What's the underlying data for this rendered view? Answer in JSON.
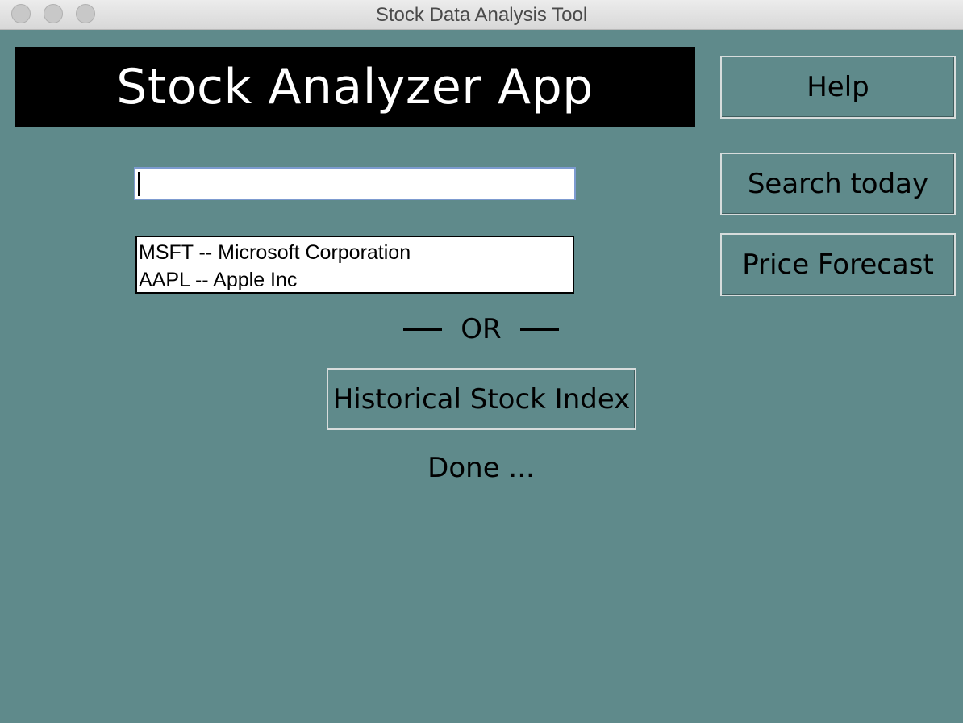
{
  "window": {
    "title": "Stock Data Analysis Tool"
  },
  "header": {
    "title": "Stock Analyzer App"
  },
  "sidebar": {
    "help_label": "Help",
    "search_today_label": "Search today",
    "price_forecast_label": "Price Forecast"
  },
  "search": {
    "value": "",
    "placeholder": ""
  },
  "results": {
    "items": [
      {
        "label": "MSFT -- Microsoft Corporation"
      },
      {
        "label": "AAPL -- Apple Inc"
      }
    ]
  },
  "separator": {
    "label": "OR"
  },
  "historical": {
    "button_label": "Historical Stock Index"
  },
  "status": {
    "text": "Done ..."
  },
  "colors": {
    "background": "#5f8a8b",
    "header_bg": "#000000",
    "header_text": "#ffffff"
  }
}
